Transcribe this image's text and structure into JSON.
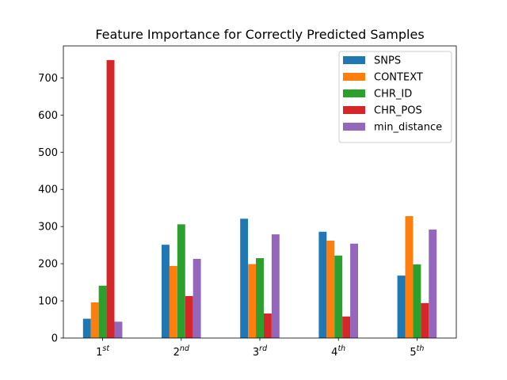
{
  "chart_data": {
    "type": "bar",
    "title": "Feature Importance for Correctly Predicted Samples",
    "xlabel": "",
    "ylabel": "",
    "categories": [
      {
        "base": "1",
        "sup": "st"
      },
      {
        "base": "2",
        "sup": "nd"
      },
      {
        "base": "3",
        "sup": "rd"
      },
      {
        "base": "4",
        "sup": "th"
      },
      {
        "base": "5",
        "sup": "th"
      }
    ],
    "series": [
      {
        "name": "SNPS",
        "color": "#1f77b4",
        "values": [
          52,
          251,
          321,
          286,
          168
        ]
      },
      {
        "name": "CONTEXT",
        "color": "#ff7f0e",
        "values": [
          96,
          194,
          199,
          262,
          328
        ]
      },
      {
        "name": "CHR_ID",
        "color": "#2ca02c",
        "values": [
          141,
          306,
          215,
          222,
          198
        ]
      },
      {
        "name": "CHR_POS",
        "color": "#d62728",
        "values": [
          748,
          113,
          66,
          58,
          94
        ]
      },
      {
        "name": "min_distance",
        "color": "#9467bd",
        "values": [
          44,
          213,
          279,
          254,
          292
        ]
      }
    ],
    "ylim": [
      0,
      786
    ],
    "yticks": [
      0,
      100,
      200,
      300,
      400,
      500,
      600,
      700
    ],
    "legend_position": "top-right",
    "grid": false
  }
}
